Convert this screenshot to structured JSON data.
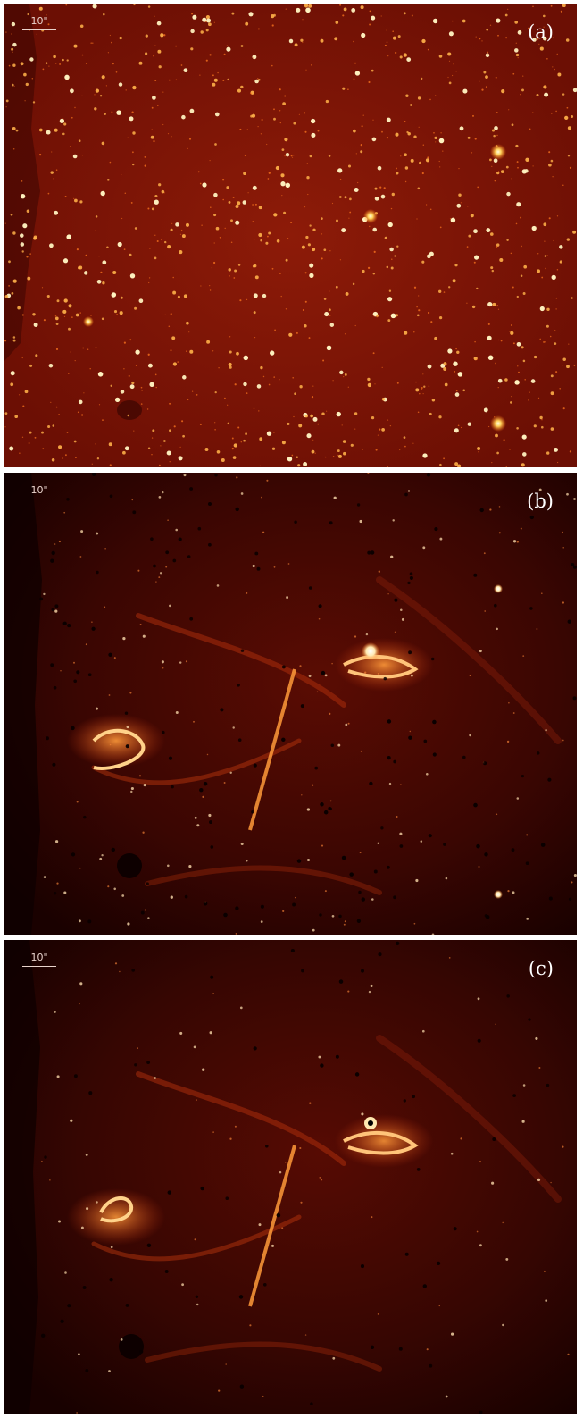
{
  "panels": [
    {
      "id": "a",
      "label": "(a)",
      "scale_label": "10\""
    },
    {
      "id": "b",
      "label": "(b)",
      "scale_label": "10\""
    },
    {
      "id": "c",
      "label": "(c)",
      "scale_label": "10\""
    }
  ],
  "colors": {
    "star_field_bg": "#7a1206",
    "residual_bg": "#200200",
    "emission": "#ff8a2a",
    "bright_core": "#ffffff"
  }
}
